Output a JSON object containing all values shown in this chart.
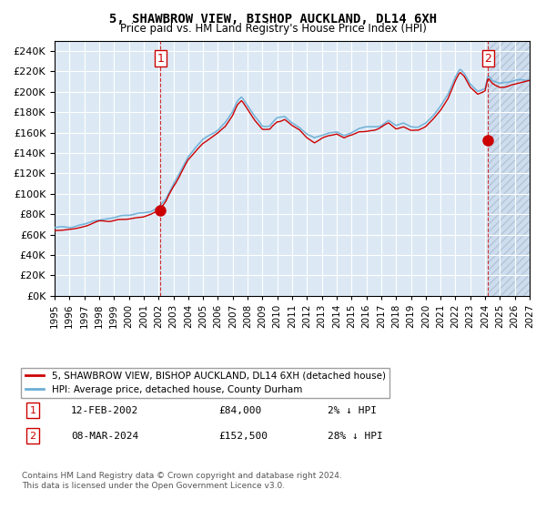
{
  "title": "5, SHAWBROW VIEW, BISHOP AUCKLAND, DL14 6XH",
  "subtitle": "Price paid vs. HM Land Registry's House Price Index (HPI)",
  "legend_line1": "5, SHAWBROW VIEW, BISHOP AUCKLAND, DL14 6XH (detached house)",
  "legend_line2": "HPI: Average price, detached house, County Durham",
  "annotation1_label": "1",
  "annotation1_date": "12-FEB-2002",
  "annotation1_price": "£84,000",
  "annotation1_hpi": "2% ↓ HPI",
  "annotation2_label": "2",
  "annotation2_date": "08-MAR-2024",
  "annotation2_price": "£152,500",
  "annotation2_hpi": "28% ↓ HPI",
  "footnote": "Contains HM Land Registry data © Crown copyright and database right 2024.\nThis data is licensed under the Open Government Licence v3.0.",
  "sale1_year": 2002.12,
  "sale1_price": 84000,
  "sale2_year": 2024.19,
  "sale2_price": 152500,
  "ylim": [
    0,
    250000
  ],
  "yticks": [
    0,
    20000,
    40000,
    60000,
    80000,
    100000,
    120000,
    140000,
    160000,
    180000,
    200000,
    220000,
    240000
  ],
  "hpi_line_color": "#6baed6",
  "price_line_color": "#cc0000",
  "marker_color": "#cc0000",
  "bg_color": "#dce9f5",
  "hatch_color": "#c0c8d8",
  "grid_color": "#ffffff",
  "dashed_line_color": "#cc0000"
}
